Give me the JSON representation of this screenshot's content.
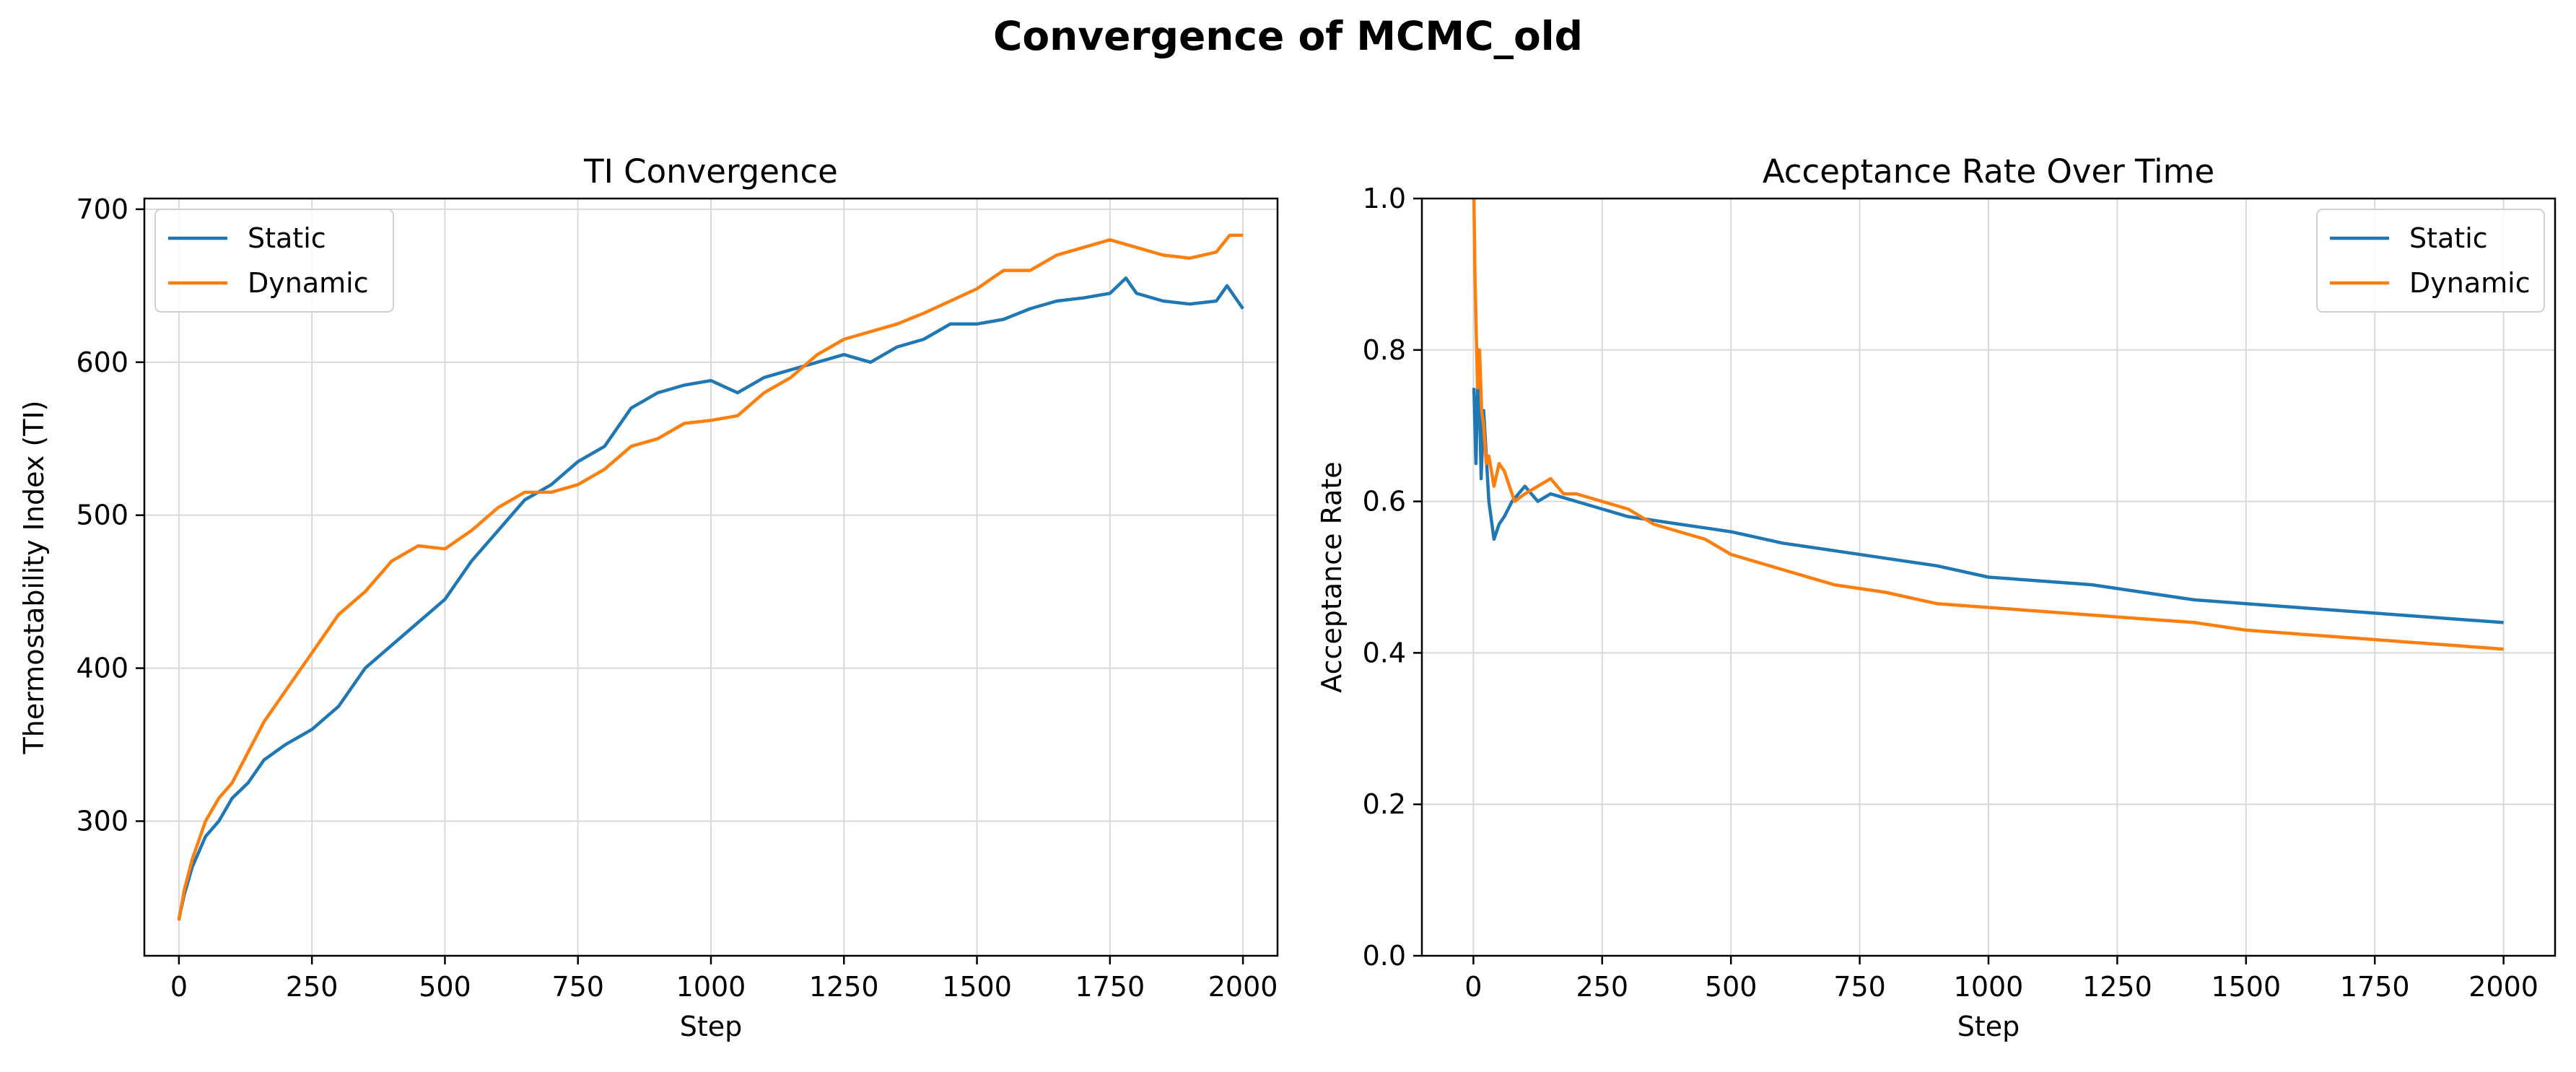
{
  "figure": {
    "suptitle": "Convergence of MCMC_old"
  },
  "colors": {
    "static": "#1f77b4",
    "dynamic": "#ff7f0e",
    "grid": "#d9d9d9"
  },
  "chart_data": [
    {
      "type": "line",
      "title": "TI Convergence",
      "xlabel": "Step",
      "ylabel": "Thermostability Index (TI)",
      "xlim": [
        -65,
        2065
      ],
      "ylim": [
        212,
        707
      ],
      "xticks": [
        0,
        250,
        500,
        750,
        1000,
        1250,
        1500,
        1750,
        2000
      ],
      "yticks": [
        300,
        400,
        500,
        600,
        700
      ],
      "grid": true,
      "legend": "top-left",
      "series": [
        {
          "name": "Static",
          "color": "#1f77b4",
          "x": [
            0,
            10,
            25,
            50,
            75,
            100,
            130,
            160,
            200,
            250,
            300,
            350,
            400,
            450,
            500,
            550,
            600,
            650,
            700,
            750,
            800,
            850,
            900,
            950,
            1000,
            1050,
            1100,
            1150,
            1200,
            1250,
            1300,
            1350,
            1400,
            1450,
            1500,
            1550,
            1600,
            1650,
            1700,
            1750,
            1780,
            1800,
            1850,
            1900,
            1950,
            1970,
            2000
          ],
          "y": [
            236,
            252,
            270,
            290,
            300,
            315,
            325,
            340,
            350,
            360,
            375,
            400,
            415,
            430,
            445,
            470,
            490,
            510,
            520,
            535,
            545,
            570,
            580,
            585,
            588,
            580,
            590,
            595,
            600,
            605,
            600,
            610,
            615,
            625,
            625,
            628,
            635,
            640,
            642,
            645,
            655,
            645,
            640,
            638,
            640,
            650,
            635
          ]
        },
        {
          "name": "Dynamic",
          "color": "#ff7f0e",
          "x": [
            0,
            10,
            25,
            50,
            75,
            100,
            130,
            160,
            200,
            250,
            300,
            350,
            400,
            450,
            500,
            550,
            600,
            650,
            700,
            750,
            800,
            850,
            900,
            950,
            1000,
            1050,
            1100,
            1150,
            1200,
            1250,
            1300,
            1350,
            1400,
            1450,
            1500,
            1550,
            1600,
            1650,
            1700,
            1750,
            1800,
            1850,
            1900,
            1950,
            1975,
            2000
          ],
          "y": [
            235,
            255,
            275,
            300,
            315,
            325,
            345,
            365,
            385,
            410,
            435,
            450,
            470,
            480,
            478,
            490,
            505,
            515,
            515,
            520,
            530,
            545,
            550,
            560,
            562,
            565,
            580,
            590,
            605,
            615,
            620,
            625,
            632,
            640,
            648,
            660,
            660,
            670,
            675,
            680,
            675,
            670,
            668,
            672,
            683,
            683
          ]
        }
      ]
    },
    {
      "type": "line",
      "title": "Acceptance Rate Over Time",
      "xlabel": "Step",
      "ylabel": "Acceptance Rate",
      "xlim": [
        -100,
        2100
      ],
      "ylim": [
        0,
        1.0
      ],
      "xticks": [
        0,
        250,
        500,
        750,
        1000,
        1250,
        1500,
        1750,
        2000
      ],
      "yticks": [
        0.0,
        0.2,
        0.4,
        0.6,
        0.8,
        1.0
      ],
      "ytick_labels": [
        "0.0",
        "0.2",
        "0.4",
        "0.6",
        "0.8",
        "1.0"
      ],
      "grid": true,
      "legend": "top-right",
      "series": [
        {
          "name": "Static",
          "color": "#1f77b4",
          "x": [
            1,
            5,
            10,
            15,
            20,
            25,
            30,
            40,
            50,
            60,
            75,
            100,
            125,
            150,
            200,
            250,
            300,
            350,
            400,
            450,
            500,
            600,
            700,
            800,
            900,
            1000,
            1100,
            1200,
            1300,
            1400,
            1500,
            1600,
            1700,
            1800,
            1900,
            2000
          ],
          "y": [
            0.75,
            0.65,
            0.8,
            0.63,
            0.72,
            0.66,
            0.6,
            0.55,
            0.57,
            0.58,
            0.6,
            0.62,
            0.6,
            0.61,
            0.6,
            0.59,
            0.58,
            0.575,
            0.57,
            0.565,
            0.56,
            0.545,
            0.535,
            0.525,
            0.515,
            0.5,
            0.495,
            0.49,
            0.48,
            0.47,
            0.465,
            0.46,
            0.455,
            0.45,
            0.445,
            0.44
          ]
        },
        {
          "name": "Dynamic",
          "color": "#ff7f0e",
          "x": [
            1,
            3,
            5,
            8,
            12,
            16,
            20,
            25,
            30,
            40,
            50,
            60,
            80,
            100,
            125,
            150,
            175,
            200,
            250,
            300,
            350,
            400,
            450,
            500,
            600,
            700,
            800,
            900,
            1000,
            1100,
            1200,
            1300,
            1400,
            1500,
            1600,
            1700,
            1800,
            1900,
            2000
          ],
          "y": [
            1.0,
            0.9,
            0.84,
            0.75,
            0.8,
            0.72,
            0.7,
            0.65,
            0.66,
            0.62,
            0.65,
            0.64,
            0.6,
            0.61,
            0.62,
            0.63,
            0.61,
            0.61,
            0.6,
            0.59,
            0.57,
            0.56,
            0.55,
            0.53,
            0.51,
            0.49,
            0.48,
            0.465,
            0.46,
            0.455,
            0.45,
            0.445,
            0.44,
            0.43,
            0.425,
            0.42,
            0.415,
            0.41,
            0.405
          ]
        }
      ]
    }
  ]
}
